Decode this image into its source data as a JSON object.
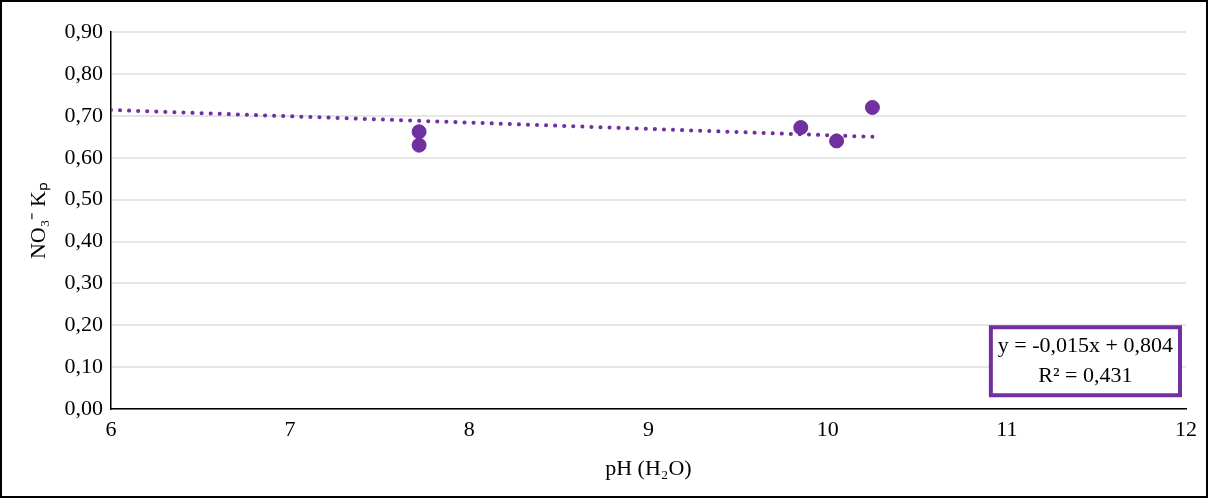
{
  "chart_data": {
    "type": "scatter",
    "xlabel": "pH (H₂O)",
    "ylabel": "NO₃⁻ Kₚ",
    "xlim": [
      6,
      12
    ],
    "xticks": [
      6,
      7,
      8,
      9,
      10,
      11,
      12
    ],
    "ylim": [
      0,
      0.9
    ],
    "yticks": [
      {
        "value": 0,
        "label": "0,00"
      },
      {
        "value": 0.1,
        "label": "0,10"
      },
      {
        "value": 0.2,
        "label": "0,20"
      },
      {
        "value": 0.3,
        "label": "0,30"
      },
      {
        "value": 0.4,
        "label": "0,40"
      },
      {
        "value": 0.5,
        "label": "0,50"
      },
      {
        "value": 0.6,
        "label": "0,60"
      },
      {
        "value": 0.7,
        "label": "0,70"
      },
      {
        "value": 0.8,
        "label": "0,80"
      },
      {
        "value": 0.9,
        "label": "0,90"
      }
    ],
    "grid": "y",
    "legend": false,
    "marker": "circle",
    "series": [
      {
        "color": "#7030a0",
        "x": [
          7.72,
          7.72,
          9.85,
          10.05,
          10.25
        ],
        "values": [
          0.662,
          0.63,
          0.672,
          0.64,
          0.72
        ]
      },
      {
        "type": "line",
        "color": "#7030a0",
        "x": [
          6,
          10.25
        ],
        "values": [
          0.714,
          0.65
        ],
        "line_style": "dotted",
        "marker": "none"
      }
    ],
    "annotations": [
      "y = -0,015x + 0,804",
      "R² = 0,431"
    ]
  }
}
